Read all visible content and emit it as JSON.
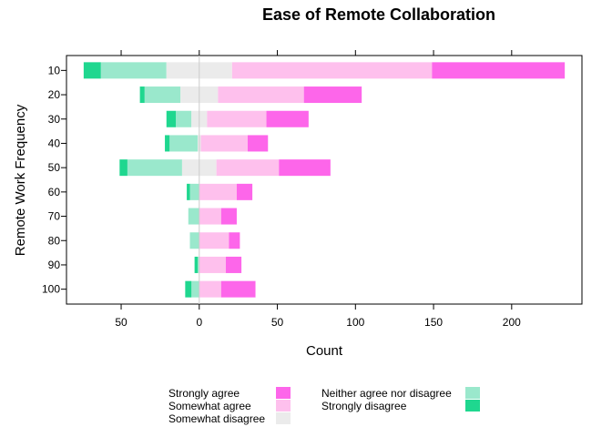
{
  "chart_data": {
    "type": "bar",
    "orientation": "horizontal-diverging",
    "title": "Ease of Remote Collaboration",
    "xlabel": "Count",
    "ylabel": "Remote Work Frequency",
    "xlim": [
      -85,
      245
    ],
    "xticks": [
      -50,
      0,
      50,
      100,
      150,
      200
    ],
    "xtick_labels": [
      "50",
      "0",
      "50",
      "100",
      "150",
      "200"
    ],
    "categories": [
      "10",
      "20",
      "30",
      "40",
      "50",
      "60",
      "70",
      "80",
      "90",
      "100"
    ],
    "series": [
      {
        "name": "Strongly disagree",
        "color": "#1fd78f",
        "side": "negative",
        "values": [
          11,
          3,
          6,
          3,
          5,
          2,
          0,
          0,
          2,
          4
        ]
      },
      {
        "name": "Somewhat disagree",
        "color": "#ebebeb",
        "side": "split",
        "values": [
          42,
          24,
          10,
          2,
          22,
          0,
          0,
          0,
          0,
          0
        ]
      },
      {
        "name": "Neither agree nor disagree",
        "color": "#9ae8cc",
        "side": "negative",
        "values": [
          42,
          23,
          10,
          18,
          35,
          6,
          7,
          6,
          1,
          5
        ]
      },
      {
        "name": "Somewhat agree",
        "color": "#fec0ed",
        "side": "positive",
        "values": [
          128,
          55,
          38,
          30,
          40,
          24,
          14,
          19,
          17,
          14
        ]
      },
      {
        "name": "Strongly agree",
        "color": "#fd66ea",
        "side": "positive",
        "values": [
          85,
          37,
          27,
          13,
          33,
          10,
          10,
          7,
          10,
          22
        ]
      }
    ],
    "legend": {
      "position": "bottom",
      "columns": [
        [
          "Strongly agree",
          "Somewhat agree",
          "Somewhat disagree"
        ],
        [
          "Neither agree nor disagree",
          "Strongly disagree"
        ]
      ]
    },
    "grid": false,
    "zero_line": true
  }
}
